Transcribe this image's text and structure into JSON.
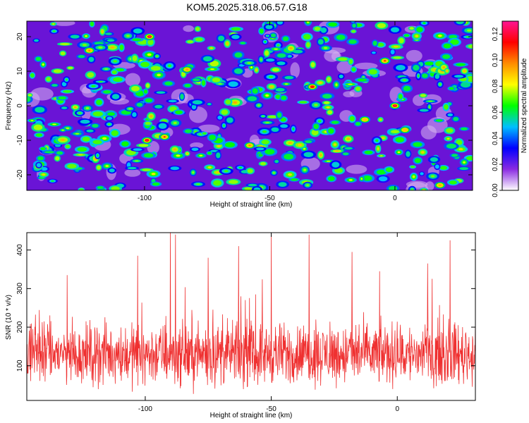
{
  "title": "KOM5.2025.318.06.57.G18",
  "chart_data": [
    {
      "type": "heatmap",
      "xlabel": "Height of straight line (km)",
      "ylabel": "Frequency (Hz)",
      "xlim": [
        -147,
        31
      ],
      "ylim": [
        -24.5,
        24.5
      ],
      "xticks": [
        -100,
        -50,
        0
      ],
      "xtick_labels": [
        "-100",
        "-50",
        "0"
      ],
      "yticks": [
        -20,
        -10,
        0,
        10,
        20
      ],
      "ytick_labels": [
        "-20",
        "-10",
        "0",
        "10",
        "20"
      ],
      "colorbar": {
        "label": "Normalized spectral amplitude",
        "range": [
          0,
          0.13
        ],
        "ticks": [
          0,
          0.02,
          0.04,
          0.06,
          0.08,
          0.1,
          0.12
        ],
        "tick_labels": [
          "0.00",
          "0.02",
          "0.04",
          "0.06",
          "0.08",
          "0.10",
          "0.12"
        ],
        "colors": [
          "#ffffff",
          "#8a2be2",
          "#0000ff",
          "#00bfff",
          "#00ff00",
          "#ffff00",
          "#ff8c00",
          "#ff0000",
          "#ff1493"
        ]
      },
      "peaks": [
        {
          "x": -98,
          "y": 20,
          "v": 0.128
        },
        {
          "x": -99,
          "y": -10,
          "v": 0.122
        },
        {
          "x": -92,
          "y": -9,
          "v": 0.11
        },
        {
          "x": -33,
          "y": 5.5,
          "v": 0.115
        },
        {
          "x": 0,
          "y": 0,
          "v": 0.125
        },
        {
          "x": -4,
          "y": 13,
          "v": 0.11
        },
        {
          "x": -58,
          "y": -11.5,
          "v": 0.1
        },
        {
          "x": -122,
          "y": 16,
          "v": 0.1
        },
        {
          "x": 18,
          "y": -23,
          "v": 0.095
        },
        {
          "x": -83,
          "y": 10.5,
          "v": 0.095
        },
        {
          "x": 4,
          "y": -7,
          "v": 0.09
        },
        {
          "x": -12,
          "y": -4,
          "v": 0.09
        }
      ]
    },
    {
      "type": "line",
      "xlabel": "Height of straight line (km)",
      "ylabel": "SNR (10 * v/v)",
      "xlim": [
        -147,
        31
      ],
      "ylim": [
        10,
        445
      ],
      "xticks": [
        -100,
        -50,
        0
      ],
      "xtick_labels": [
        "-100",
        "-50",
        "0"
      ],
      "yticks": [
        100,
        200,
        300,
        400
      ],
      "ytick_labels": [
        "100",
        "200",
        "300",
        "400"
      ],
      "color": "#ef3030",
      "mean": 130,
      "spread": 55,
      "spikes": [
        {
          "x": -90,
          "y": 445
        },
        {
          "x": -88,
          "y": 440
        },
        {
          "x": -50,
          "y": 440
        },
        {
          "x": -35,
          "y": 440
        },
        {
          "x": -63,
          "y": 410
        },
        {
          "x": 21,
          "y": 425
        },
        {
          "x": -18,
          "y": 395
        },
        {
          "x": -103,
          "y": 385
        },
        {
          "x": -75,
          "y": 380
        },
        {
          "x": 12,
          "y": 365
        },
        {
          "x": -131,
          "y": 335
        },
        {
          "x": -7,
          "y": 345
        }
      ]
    }
  ]
}
